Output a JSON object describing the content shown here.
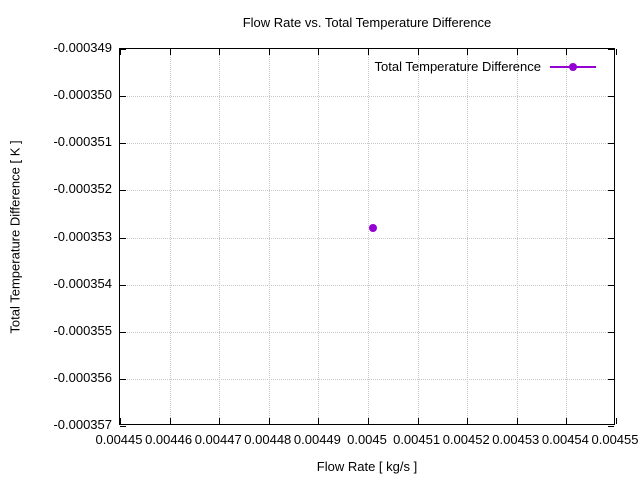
{
  "chart_data": {
    "type": "scatter",
    "title": "Flow Rate vs. Total Temperature Difference",
    "xlabel": "Flow Rate [ kg/s ]",
    "ylabel": "Total Temperature Difference [ K ]",
    "xlim": [
      0.00445,
      0.00455
    ],
    "ylim": [
      -0.000357,
      -0.000349
    ],
    "grid": true,
    "legend_position": "top-right-inside",
    "colors": {
      "series": "#9400d3",
      "grid": "#c8c8c8",
      "axis": "#000000",
      "background": "#ffffff"
    },
    "xticks": {
      "values": [
        0.00445,
        0.00446,
        0.00447,
        0.00448,
        0.00449,
        0.0045,
        0.00451,
        0.00452,
        0.00453,
        0.00454,
        0.00455
      ],
      "labels": [
        "0.00445",
        "0.00446",
        "0.00447",
        "0.00448",
        "0.00449",
        "0.0045",
        "0.00451",
        "0.00452",
        "0.00453",
        "0.00454",
        "0.00455"
      ]
    },
    "yticks": {
      "values": [
        -0.000349,
        -0.00035,
        -0.000351,
        -0.000352,
        -0.000353,
        -0.000354,
        -0.000355,
        -0.000356,
        -0.000357
      ],
      "labels": [
        "-0.000349",
        "-0.000350",
        "-0.000351",
        "-0.000352",
        "-0.000353",
        "-0.000354",
        "-0.000355",
        "-0.000356",
        "-0.000357"
      ]
    },
    "series": [
      {
        "name": "Total Temperature Difference",
        "color": "#9400d3",
        "marker": "filled-circle",
        "points": [
          {
            "x": 0.004501,
            "y": -0.0003528
          }
        ]
      }
    ]
  }
}
